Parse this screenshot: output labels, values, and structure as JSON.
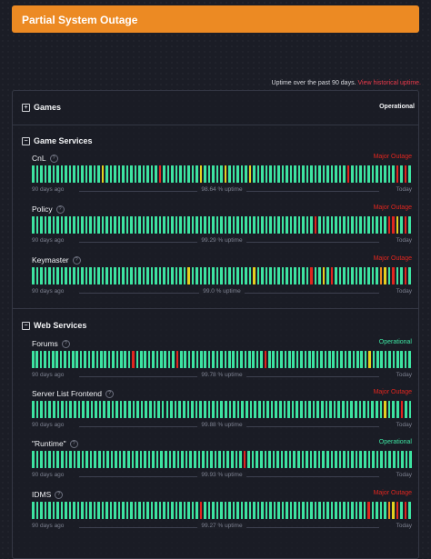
{
  "banner": {
    "title": "Partial System Outage"
  },
  "uptime_note": {
    "text": "Uptime over the past 90 days.",
    "link": "View historical uptime."
  },
  "colors": {
    "operational": "#3de3a1",
    "major_outage": "#e0261f",
    "partial": "#ee8a1f",
    "degraded": "#e3d020",
    "banner": "#ec8a23"
  },
  "groups": [
    {
      "name": "Games",
      "status": "Operational",
      "expand_icon": "plus-square-icon"
    },
    {
      "name": "Game Services",
      "expand_icon": "minus-square-icon",
      "services": [
        {
          "name": "CnL",
          "status": "Major Outage",
          "uptime": "98.64 % uptime",
          "start_label": "90 days ago",
          "end_label": "Today",
          "bars": "oooooooooooooooooyoooooooooooooRoooooooooyoooooyoooooyoooooooooooooooooooooooRoooooooooooRoRo"
        },
        {
          "name": "Policy",
          "status": "Major Outage",
          "uptime": "99.29 % uptime",
          "start_label": "90 days ago",
          "end_label": "Today",
          "bars": "oooooooooooooooooooooooooooooooooooooooooooooooooooooooooooooooooooooRoooooooooooooooooRRyoRo"
        },
        {
          "name": "Keymaster",
          "status": "Major Outage",
          "uptime": "99.0 % uptime",
          "start_label": "90 days ago",
          "end_label": "Today",
          "bars": "ooooooooooooooooooooooooooooooooooooooyoooooooooooooooyoooooooooooooRooyoRoooooooooooOyoRooRo"
        }
      ]
    },
    {
      "name": "Web Services",
      "expand_icon": "minus-square-icon",
      "services": [
        {
          "name": "Forums",
          "status": "Operational",
          "uptime": "99.78 % uptime",
          "start_label": "90 days ago",
          "end_label": "Today",
          "bars": "oooooooooooooooooooooooooRooooooooooRoooooooooooooooooooooRoooooooooooooooooooooooooyoooooooooo"
        },
        {
          "name": "Server List Frontend",
          "status": "Major Outage",
          "uptime": "99.88 % uptime",
          "start_label": "90 days ago",
          "end_label": "Today",
          "bars": "ooooooooooooooooooooooooooooooooooooooooooooooooooooooooooooooooooooooooooooooooooooyoooRoo"
        },
        {
          "name": "\"Runtime\"",
          "status": "Operational",
          "uptime": "99.93 % uptime",
          "start_label": "90 days ago",
          "end_label": "Today",
          "bars": "oooooooooooooooooooooooooooooooooooooooooooooooooooRoooooooooooooooooooooooooooooooooooooooo"
        },
        {
          "name": "IDMS",
          "status": "Major Outage",
          "uptime": "99.27 % uptime",
          "start_label": "90 days ago",
          "end_label": "Today",
          "bars": "oooooooooooooooooooooooooooooooooooooooooRooooooooooooooooooooooooooooooooooooooooRooooOyRoRo"
        }
      ]
    }
  ]
}
